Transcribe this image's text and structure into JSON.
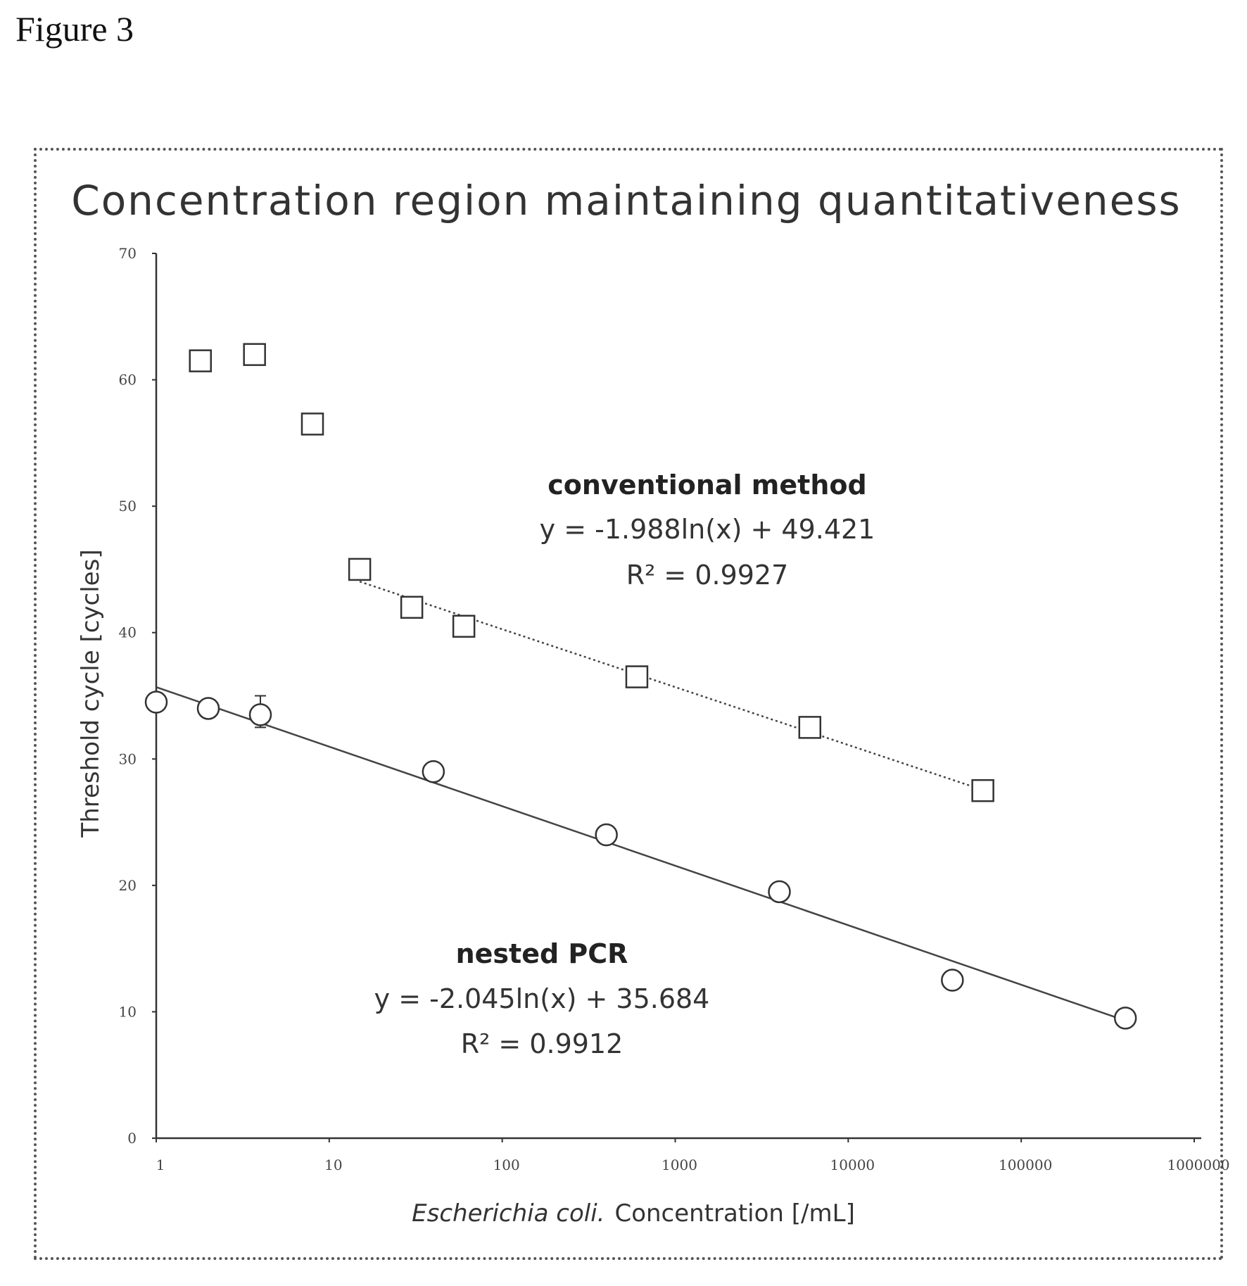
{
  "figure_label": "Figure 3",
  "chart_data": {
    "type": "scatter",
    "title": "Concentration region maintaining quantitativeness",
    "xlabel_italic": "Escherichia coli.",
    "xlabel": "Concentration [/mL]",
    "ylabel": "Threshold cycle [cycles]",
    "x_scale": "log",
    "xlim": [
      1,
      1000000
    ],
    "ylim": [
      0,
      70
    ],
    "x_ticks": [
      1,
      10,
      100,
      1000,
      10000,
      100000,
      1000000
    ],
    "x_tick_labels": [
      "1",
      "10",
      "100",
      "1000",
      "10000",
      "100000",
      "1000000"
    ],
    "y_ticks": [
      0,
      10,
      20,
      30,
      40,
      50,
      60,
      70
    ],
    "y_tick_labels": [
      "0",
      "10",
      "20",
      "30",
      "40",
      "50",
      "60",
      "70"
    ],
    "grid": false,
    "series": [
      {
        "name": "conventional method",
        "marker": "square",
        "x": [
          1.8,
          3.7,
          8,
          15,
          30,
          60,
          600,
          6000,
          60000
        ],
        "y": [
          61.5,
          62,
          56.5,
          45,
          42,
          40.5,
          36.5,
          32.5,
          27.5
        ],
        "trendline": {
          "equation": "y = -1.988ln(x) + 49.421",
          "r2": "R² = 0.9927",
          "slope": -1.988,
          "intercept": 49.421,
          "x_range": [
            15,
            60000
          ],
          "style": "dotted"
        }
      },
      {
        "name": "nested PCR",
        "marker": "circle",
        "x": [
          1,
          2,
          4,
          40,
          400,
          4000,
          40000,
          400000
        ],
        "y": [
          34.5,
          34,
          33.5,
          29,
          24,
          19.5,
          12.5,
          9.5
        ],
        "error_bar": {
          "x": 4,
          "low": 32.5,
          "high": 35
        },
        "trendline": {
          "equation": "y = -2.045ln(x) + 35.684",
          "r2": "R² = 0.9912",
          "slope": -2.045,
          "intercept": 35.684,
          "x_range": [
            1,
            400000
          ],
          "style": "solid"
        }
      }
    ]
  }
}
